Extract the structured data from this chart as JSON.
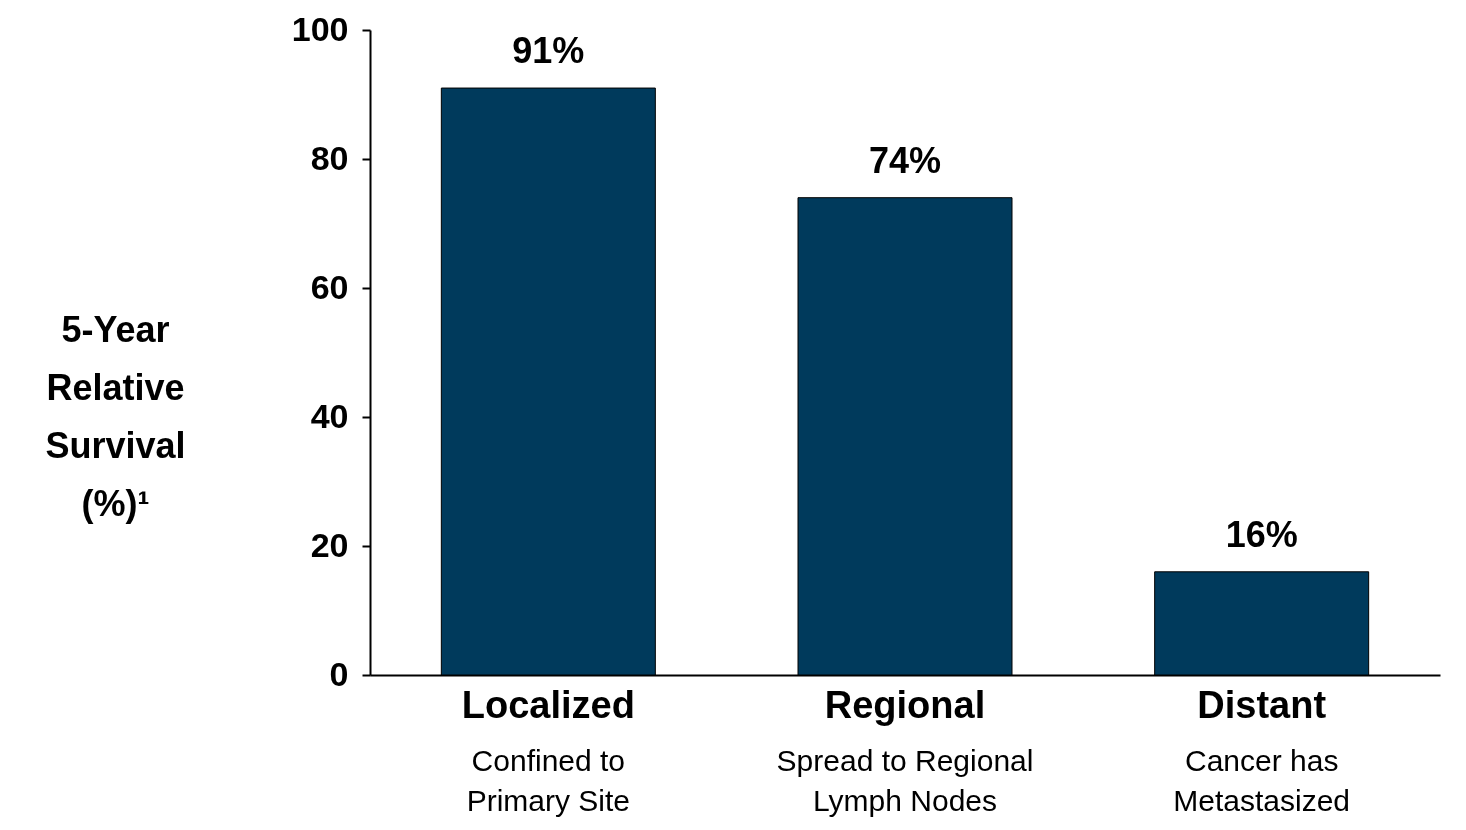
{
  "chart_data": {
    "type": "bar",
    "categories": [
      "Localized",
      "Regional",
      "Distant"
    ],
    "values": [
      91,
      74,
      16
    ],
    "color": "#003a5c",
    "ylabel": "5-Year Relative Survival (%)¹",
    "ylim": [
      0,
      100
    ],
    "yticks": [
      0,
      20,
      40,
      60,
      80,
      100
    ],
    "value_labels": [
      "91%",
      "74%",
      "16%"
    ],
    "annotations": [
      "Confined to Primary Site",
      "Spread to Regional Lymph Nodes",
      "Cancer has Metastasized"
    ],
    "grid": false
  }
}
